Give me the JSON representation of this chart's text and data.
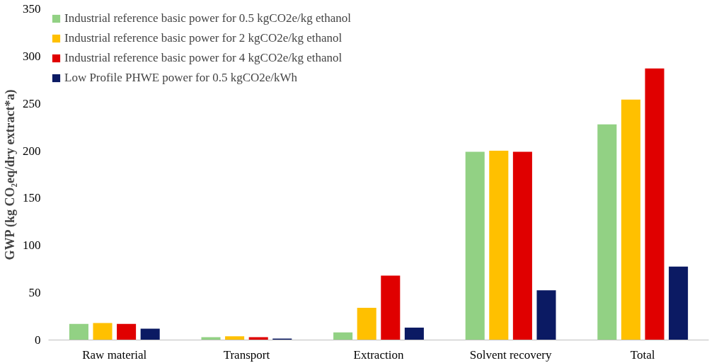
{
  "chart_data": {
    "type": "bar",
    "ylabel": "GWP (kg CO₂eq/dry extract*a)",
    "categories": [
      "Raw material",
      "Transport",
      "Extraction",
      "Solvent recovery",
      "Total"
    ],
    "series": [
      {
        "name": "Industrial reference basic power for 0.5 kgCO2e/kg ethanol",
        "color": "#92d184",
        "values": [
          17,
          3,
          8,
          199,
          228
        ]
      },
      {
        "name": "Industrial reference basic power for 2 kgCO2e/kg ethanol",
        "color": "#ffc000",
        "values": [
          18,
          4,
          34,
          200,
          254
        ]
      },
      {
        "name": "Industrial reference basic power for 4 kgCO2e/kg ethanol",
        "color": "#e00000",
        "values": [
          17,
          3,
          68,
          199,
          287
        ]
      },
      {
        "name": "Low Profile PHWE power for 0.5 kgCO2e/kWh",
        "color": "#0b1a63",
        "values": [
          12,
          1.5,
          13,
          52.5,
          77.5
        ]
      }
    ],
    "ylim": [
      0,
      350
    ],
    "yticks": [
      0,
      50,
      100,
      150,
      200,
      250,
      300,
      350
    ],
    "grid": false,
    "legend": "top left"
  }
}
